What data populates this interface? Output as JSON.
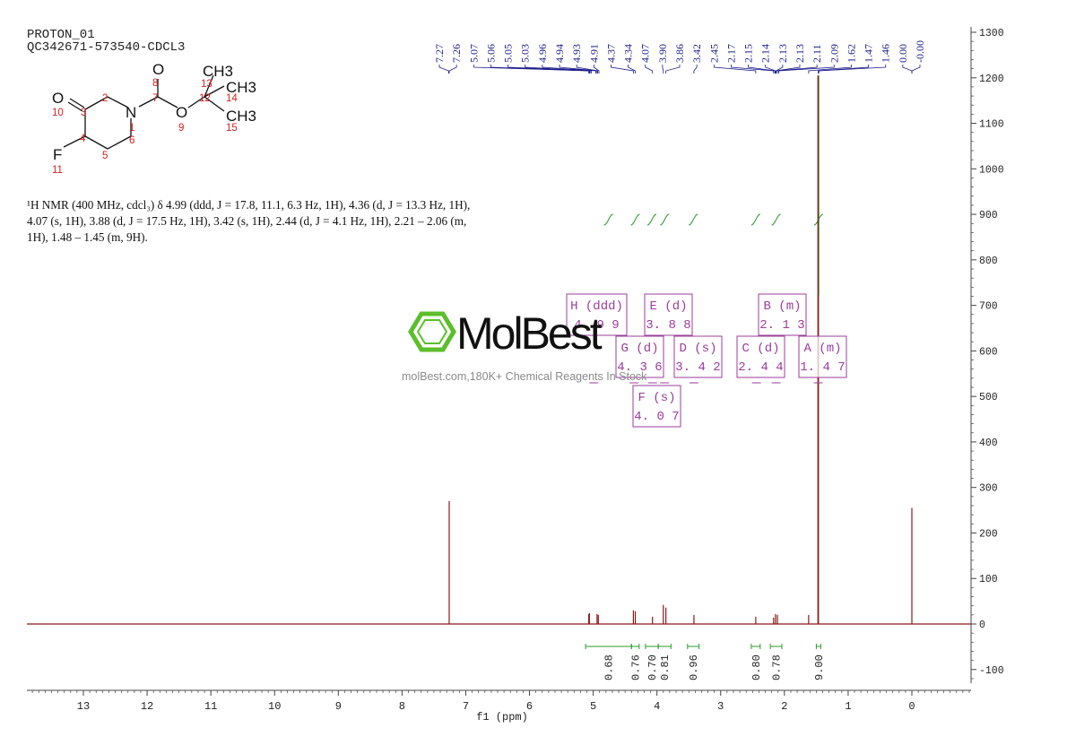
{
  "header": {
    "line1": "PROTON_01",
    "line2": "QC342671-573540-CDCL3"
  },
  "description": {
    "line1": "¹H NMR (400 MHz, cdcl₃) δ 4.99 (ddd, J = 17.8, 11.1, 6.3 Hz, 1H), 4.36 (d, J = 13.3 Hz, 1H),",
    "line2": "4.07 (s, 1H), 3.88 (d, J = 17.5 Hz, 1H), 3.42 (s, 1H), 2.44 (d, J = 4.1 Hz, 1H), 2.21 – 2.06 (m,",
    "line3": "1H), 1.48 – 1.45 (m, 9H)."
  },
  "watermark": {
    "brand": "MolBest",
    "tagline": "molBest.com,180K+ Chemical Reagents In Stock"
  },
  "structure": {
    "atoms": [
      "O",
      "O",
      "N",
      "O",
      "F",
      "CH3",
      "CH3",
      "CH3"
    ],
    "numbers": [
      "1",
      "2",
      "3",
      "4",
      "5",
      "6",
      "7",
      "8",
      "9",
      "10",
      "11",
      "12",
      "13",
      "14",
      "15"
    ]
  },
  "colors": {
    "spectrum": "#8b1a1a",
    "integral": "#2e9a2e",
    "peak_label": "#1c1c8c",
    "multiplet_box": "#9b3d9b",
    "watermark_logo": "#5bbf2b",
    "axis": "#444444"
  },
  "chart_data": {
    "type": "line",
    "title": "",
    "xlabel": "f1 (ppm)",
    "ylabel": "",
    "x_reversed": true,
    "xlim": [
      13.9,
      -0.9
    ],
    "ylim": [
      -140,
      1310
    ],
    "x_ticks": [
      13,
      12,
      11,
      10,
      9,
      8,
      7,
      6,
      5,
      4,
      3,
      2,
      1,
      0
    ],
    "y_ticks": [
      1300,
      1200,
      1100,
      1000,
      900,
      800,
      700,
      600,
      500,
      400,
      300,
      200,
      100,
      0,
      -100
    ],
    "y_tick_labels": [
      "1300",
      "1200",
      "1100",
      "1000",
      "900",
      "800",
      "700",
      "600",
      "500",
      "400",
      "300",
      "200",
      "100",
      "0",
      "-100"
    ],
    "peaks": [
      {
        "ppm": 7.26,
        "height": 270
      },
      {
        "ppm": 5.07,
        "height": 22
      },
      {
        "ppm": 5.06,
        "height": 24
      },
      {
        "ppm": 4.94,
        "height": 22
      },
      {
        "ppm": 4.92,
        "height": 20
      },
      {
        "ppm": 4.37,
        "height": 30
      },
      {
        "ppm": 4.34,
        "height": 28
      },
      {
        "ppm": 4.07,
        "height": 16
      },
      {
        "ppm": 3.9,
        "height": 42
      },
      {
        "ppm": 3.86,
        "height": 36
      },
      {
        "ppm": 3.42,
        "height": 20
      },
      {
        "ppm": 2.45,
        "height": 16
      },
      {
        "ppm": 2.17,
        "height": 14
      },
      {
        "ppm": 2.14,
        "height": 22
      },
      {
        "ppm": 2.11,
        "height": 20
      },
      {
        "ppm": 1.62,
        "height": 20
      },
      {
        "ppm": 1.47,
        "height": 1205
      },
      {
        "ppm": 0.0,
        "height": 255
      }
    ],
    "peak_labels": [
      "7.27",
      "7.26",
      "5.07",
      "5.06",
      "5.05",
      "5.03",
      "4.96",
      "4.94",
      "4.93",
      "4.91",
      "4.37",
      "4.34",
      "4.07",
      "3.90",
      "3.86",
      "3.42",
      "2.45",
      "2.17",
      "2.15",
      "2.14",
      "2.13",
      "2.13",
      "2.11",
      "2.09",
      "1.62",
      "1.47",
      "1.46",
      "0.00",
      "-0.00"
    ],
    "integrals": [
      {
        "label": "0.68",
        "from": 5.12,
        "to": 4.4
      },
      {
        "label": "0.76",
        "from": 4.4,
        "to": 4.28
      },
      {
        "label": "0.70",
        "from": 4.18,
        "to": 3.98
      },
      {
        "label": "0.81",
        "from": 3.98,
        "to": 3.78
      },
      {
        "label": "0.96",
        "from": 3.52,
        "to": 3.34
      },
      {
        "label": "0.80",
        "from": 2.52,
        "to": 2.38
      },
      {
        "label": "0.78",
        "from": 2.22,
        "to": 2.04
      },
      {
        "label": "9.00",
        "from": 1.5,
        "to": 1.43
      }
    ],
    "multiplets": [
      {
        "id": "H",
        "type": "ddd",
        "shift": "4.99"
      },
      {
        "id": "E",
        "type": "d",
        "shift": "3.88"
      },
      {
        "id": "B",
        "type": "m",
        "shift": "2.13"
      },
      {
        "id": "G",
        "type": "d",
        "shift": "4.36"
      },
      {
        "id": "D",
        "type": "s",
        "shift": "3.42"
      },
      {
        "id": "C",
        "type": "d",
        "shift": "2.44"
      },
      {
        "id": "A",
        "type": "m",
        "shift": "1.47"
      },
      {
        "id": "F",
        "type": "s",
        "shift": "4.07"
      }
    ]
  }
}
